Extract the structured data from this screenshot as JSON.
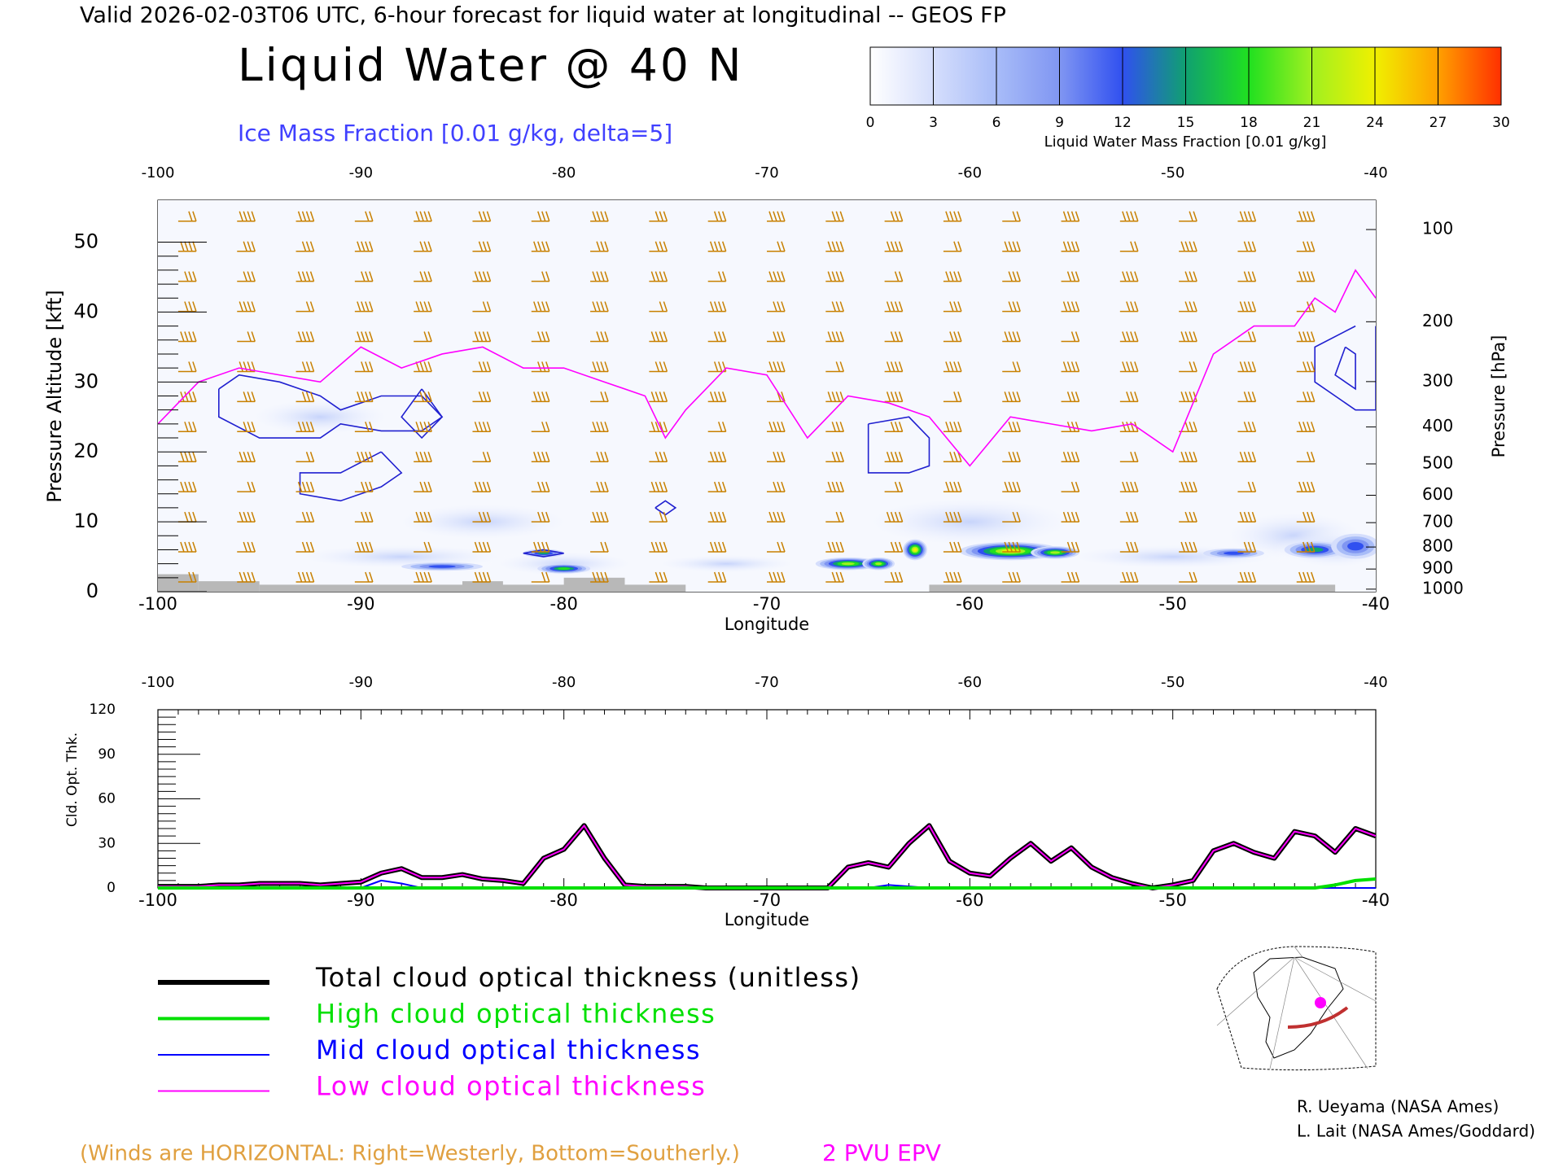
{
  "header": {
    "line": "Valid 2026-02-03T06 UTC, 6-hour forecast for liquid water at longitudinal -- GEOS FP",
    "title": "Liquid Water @ 40 N",
    "subtitle": "Ice Mass Fraction [0.01 g/kg, delta=5]"
  },
  "chart_data": [
    {
      "type": "contour",
      "x_label": "Longitude",
      "y_label": "Pressure Altitude [kft]",
      "y2_label": "Pressure [hPa]",
      "xlim": [
        -100,
        -40
      ],
      "xticks": [
        -100,
        -90,
        -80,
        -70,
        -60,
        -50,
        -40
      ],
      "ylim": [
        0,
        56
      ],
      "yticks": [
        0,
        10,
        20,
        30,
        40,
        50
      ],
      "y2scale": "standard-atmosphere",
      "y2ticks": [
        100,
        200,
        300,
        400,
        500,
        600,
        700,
        800,
        900,
        1000
      ],
      "colorbar": {
        "label": "Liquid Water Mass Fraction [0.01 g/kg]",
        "ticks": [
          0,
          3,
          6,
          9,
          12,
          15,
          18,
          21,
          24,
          27,
          30
        ],
        "colors": [
          "#ffffff",
          "#d5defc",
          "#a8bcf8",
          "#8096f2",
          "#3050f0",
          "#10a070",
          "#20e020",
          "#a0f020",
          "#f0f000",
          "#ffa000",
          "#ff3000"
        ]
      },
      "series": [
        {
          "name": "2 PVU EPV",
          "color": "#ff00ff",
          "x": [
            -100,
            -98,
            -96,
            -94,
            -92,
            -90,
            -88,
            -86,
            -84,
            -82,
            -80,
            -78,
            -76,
            -75,
            -74,
            -72,
            -70,
            -68,
            -66,
            -64,
            -62,
            -60,
            -58,
            -56,
            -54,
            -52,
            -50,
            -48,
            -46,
            -44,
            -43,
            -42,
            -41,
            -40
          ],
          "values": [
            24,
            30,
            32,
            31,
            30,
            35,
            32,
            34,
            35,
            32,
            32,
            30,
            28,
            22,
            26,
            32,
            31,
            22,
            28,
            27,
            25,
            18,
            25,
            24,
            23,
            24,
            20,
            34,
            38,
            38,
            42,
            40,
            46,
            42
          ]
        }
      ]
    },
    {
      "type": "line",
      "x_label": "Longitude",
      "y_label": "Cld. Opt. Thk.",
      "xlim": [
        -100,
        -40
      ],
      "xticks": [
        -100,
        -90,
        -80,
        -70,
        -60,
        -50,
        -40
      ],
      "ylim": [
        0,
        120
      ],
      "yticks": [
        0,
        30,
        60,
        90,
        120
      ],
      "x": [
        -100,
        -99,
        -98,
        -97,
        -96,
        -95,
        -94,
        -93,
        -92,
        -91,
        -90,
        -89,
        -88,
        -87,
        -86,
        -85,
        -84,
        -83,
        -82,
        -81,
        -80,
        -79,
        -78,
        -77,
        -76,
        -75,
        -74,
        -73,
        -72,
        -71,
        -70,
        -69,
        -68,
        -67,
        -66,
        -65,
        -64,
        -63,
        -62,
        -61,
        -60,
        -59,
        -58,
        -57,
        -56,
        -55,
        -54,
        -53,
        -52,
        -51,
        -50,
        -49,
        -48,
        -47,
        -46,
        -45,
        -44,
        -43,
        -42,
        -41,
        -40
      ],
      "series": [
        {
          "name": "Total cloud optical thickness (unitless)",
          "color": "#000000",
          "width": 6,
          "values": [
            1,
            1,
            1,
            2,
            2,
            3,
            3,
            3,
            2,
            3,
            4,
            10,
            13,
            7,
            7,
            9,
            6,
            5,
            3,
            20,
            26,
            42,
            20,
            2,
            1,
            1,
            1,
            0,
            0,
            0,
            0,
            0,
            0,
            0,
            14,
            17,
            14,
            30,
            42,
            18,
            10,
            8,
            20,
            30,
            18,
            27,
            14,
            7,
            3,
            0,
            2,
            5,
            25,
            30,
            24,
            20,
            38,
            35,
            24,
            40,
            35
          ]
        },
        {
          "name": "High cloud optical thickness",
          "color": "#00e000",
          "width": 4,
          "values": [
            0,
            0,
            0,
            0,
            0,
            0,
            0,
            0,
            0,
            0,
            0,
            0,
            0,
            0,
            0,
            0,
            0,
            0,
            0,
            0,
            0,
            0,
            0,
            0,
            0,
            0,
            0,
            0,
            0,
            0,
            0,
            0,
            0,
            0,
            0,
            0,
            0,
            0,
            0,
            0,
            0,
            0,
            0,
            0,
            0,
            0,
            0,
            0,
            0,
            0,
            0,
            0,
            0,
            0,
            0,
            0,
            0,
            0,
            2,
            5,
            6
          ]
        },
        {
          "name": "Mid cloud optical thickness",
          "color": "#0000ff",
          "width": 2,
          "values": [
            0,
            0,
            0,
            0,
            0,
            0,
            0,
            0,
            0,
            0,
            0,
            5,
            3,
            0,
            0,
            0,
            0,
            0,
            0,
            0,
            0,
            0,
            0,
            0,
            0,
            0,
            0,
            0,
            0,
            0,
            0,
            0,
            0,
            0,
            0,
            0,
            2,
            1,
            0,
            0,
            0,
            0,
            0,
            0,
            0,
            0,
            0,
            0,
            0,
            0,
            0,
            0,
            0,
            0,
            0,
            0,
            0,
            0,
            0,
            0,
            0
          ]
        },
        {
          "name": "Low cloud optical thickness",
          "color": "#ff00ff",
          "width": 2,
          "values": [
            1,
            1,
            1,
            2,
            2,
            3,
            3,
            3,
            2,
            3,
            4,
            10,
            13,
            7,
            7,
            9,
            6,
            5,
            3,
            20,
            26,
            42,
            20,
            2,
            1,
            1,
            1,
            0,
            0,
            0,
            0,
            0,
            0,
            0,
            14,
            17,
            14,
            30,
            42,
            18,
            10,
            8,
            20,
            30,
            18,
            27,
            14,
            7,
            3,
            0,
            2,
            5,
            25,
            30,
            24,
            20,
            38,
            35,
            24,
            40,
            35
          ]
        }
      ]
    }
  ],
  "footer": {
    "winds_note": "(Winds are HORIZONTAL: Right=Westerly, Bottom=Southerly.)",
    "credits": [
      "R. Ueyama (NASA Ames)",
      "L. Lait (NASA Ames/Goddard)"
    ]
  }
}
